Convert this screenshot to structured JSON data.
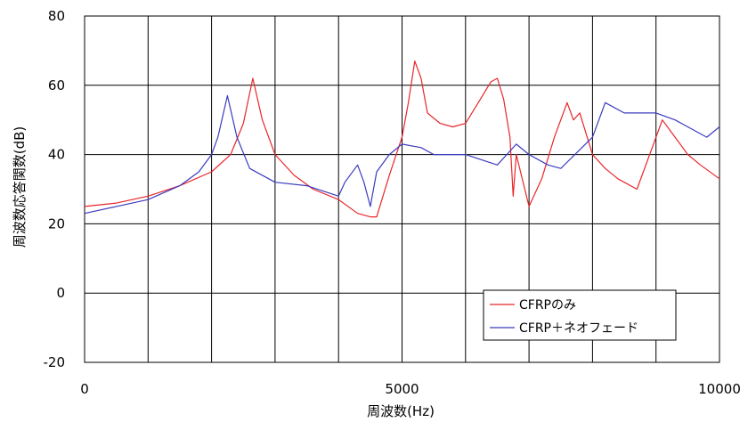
{
  "chart_data": {
    "type": "line",
    "xlabel": "周波数(Hz)",
    "ylabel": "周波数応答関数(dB)",
    "xlim": [
      0,
      10000
    ],
    "ylim": [
      -20,
      80
    ],
    "x_ticks": [
      0,
      5000,
      10000
    ],
    "x_tick_labels": [
      "0",
      "5000",
      "10000"
    ],
    "y_ticks": [
      -20,
      0,
      20,
      40,
      60,
      80
    ],
    "y_tick_labels": [
      "-20",
      "0",
      "20",
      "40",
      "60",
      "80"
    ],
    "grid": true,
    "legend_position": "lower-right",
    "series": [
      {
        "name": "CFRPのみ",
        "color": "#e8262a",
        "x": [
          0,
          500,
          1000,
          1500,
          2000,
          2300,
          2500,
          2650,
          2800,
          3000,
          3300,
          3600,
          4000,
          4300,
          4500,
          4600,
          4800,
          5000,
          5100,
          5200,
          5300,
          5400,
          5600,
          5800,
          6000,
          6200,
          6400,
          6500,
          6600,
          6700,
          6750,
          6800,
          7000,
          7200,
          7400,
          7600,
          7700,
          7800,
          8000,
          8200,
          8400,
          8700,
          8900,
          9100,
          9300,
          9500,
          9700,
          10000
        ],
        "y": [
          25,
          26,
          28,
          31,
          35,
          40,
          49,
          62,
          50,
          40,
          34,
          30,
          27,
          23,
          22,
          22,
          34,
          45,
          55,
          67,
          62,
          52,
          49,
          48,
          49,
          55,
          61,
          62,
          56,
          45,
          28,
          40,
          25,
          33,
          45,
          55,
          50,
          52,
          40,
          36,
          33,
          30,
          40,
          50,
          45,
          40,
          37,
          33
        ]
      },
      {
        "name": "CFRP＋ネオフェード",
        "color": "#3b3bbf",
        "x": [
          0,
          500,
          1000,
          1500,
          1800,
          2000,
          2100,
          2250,
          2400,
          2600,
          3000,
          3500,
          4000,
          4100,
          4300,
          4400,
          4500,
          4600,
          4800,
          5000,
          5300,
          5500,
          6000,
          6500,
          6800,
          7000,
          7300,
          7500,
          8000,
          8200,
          8500,
          9000,
          9300,
          9600,
          9800,
          10000
        ],
        "y": [
          23,
          25,
          27,
          31,
          35,
          40,
          45,
          57,
          45,
          36,
          32,
          31,
          28,
          32,
          37,
          32,
          25,
          35,
          40,
          43,
          42,
          40,
          40,
          37,
          43,
          40,
          37,
          36,
          45,
          55,
          52,
          52,
          50,
          47,
          45,
          48
        ]
      }
    ]
  }
}
